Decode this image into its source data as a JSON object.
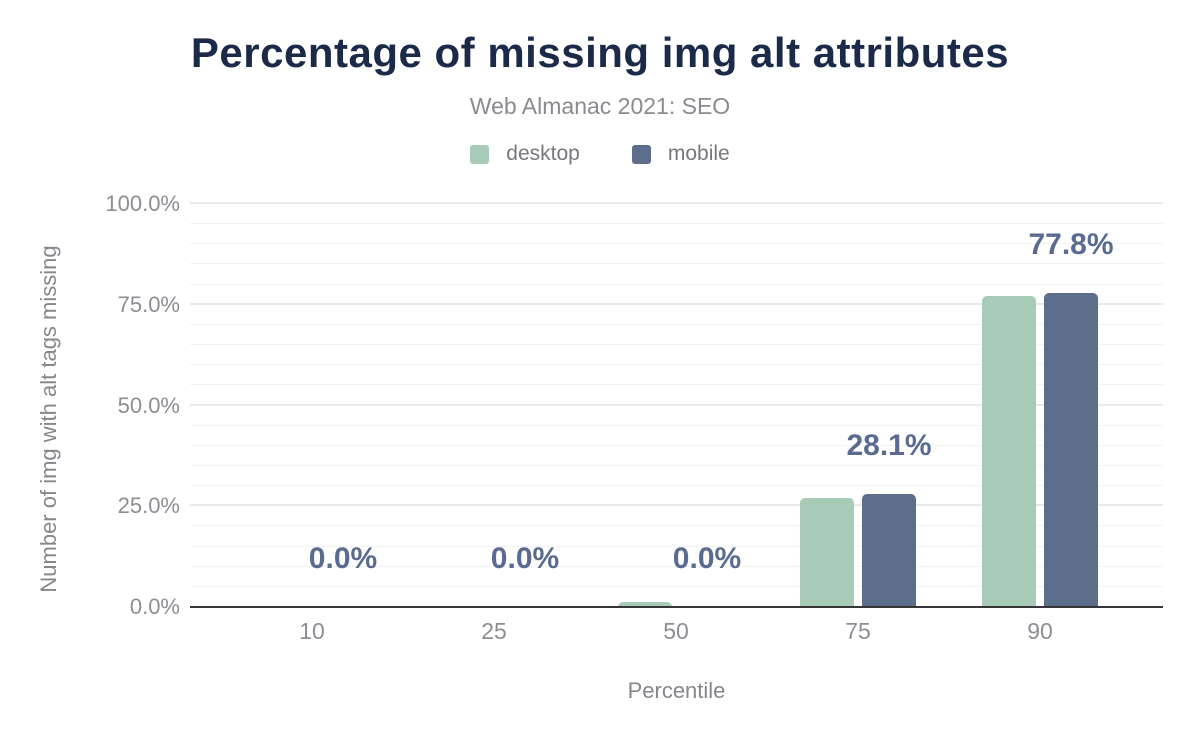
{
  "chart_data": {
    "type": "bar",
    "title": "Percentage of missing img alt attributes",
    "subtitle": "Web Almanac 2021: SEO",
    "xlabel": "Percentile",
    "ylabel": "Number of img with alt tags missing",
    "categories": [
      "10",
      "25",
      "50",
      "75",
      "90"
    ],
    "series": [
      {
        "name": "desktop",
        "color": "#a8cbb7",
        "values": [
          0,
          0,
          1.2,
          27.0,
          77.2
        ]
      },
      {
        "name": "mobile",
        "color": "#5d6e8c",
        "values": [
          0,
          0,
          0,
          28.1,
          77.8
        ]
      }
    ],
    "bar_labels": [
      "0.0%",
      "0.0%",
      "0.0%",
      "28.1%",
      "77.8%"
    ],
    "ylim": [
      0,
      100
    ],
    "y_ticks": [
      {
        "value": 0,
        "label": "0.0%"
      },
      {
        "value": 25,
        "label": "25.0%"
      },
      {
        "value": 50,
        "label": "50.0%"
      },
      {
        "value": 75,
        "label": "75.0%"
      },
      {
        "value": 100,
        "label": "100.0%"
      }
    ],
    "minor_grid_step": 5,
    "grid": true,
    "legend_position": "top"
  },
  "colors": {
    "title": "#1c2a4a",
    "subtitle": "#888b90",
    "axis_text": "#8b8e93",
    "value_label": "#5a6b91",
    "axis_line": "#363636",
    "grid_minor": "#f2f2f2",
    "grid_major": "#e9e9e9",
    "background": "#ffffff"
  }
}
